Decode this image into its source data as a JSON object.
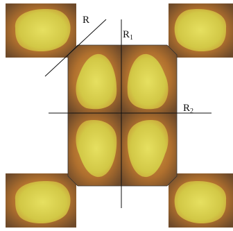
{
  "labels": {
    "r": {
      "text": "R"
    },
    "r1": {
      "text": "R",
      "sub": "1"
    },
    "r2": {
      "text": "R",
      "sub": "2"
    }
  }
}
